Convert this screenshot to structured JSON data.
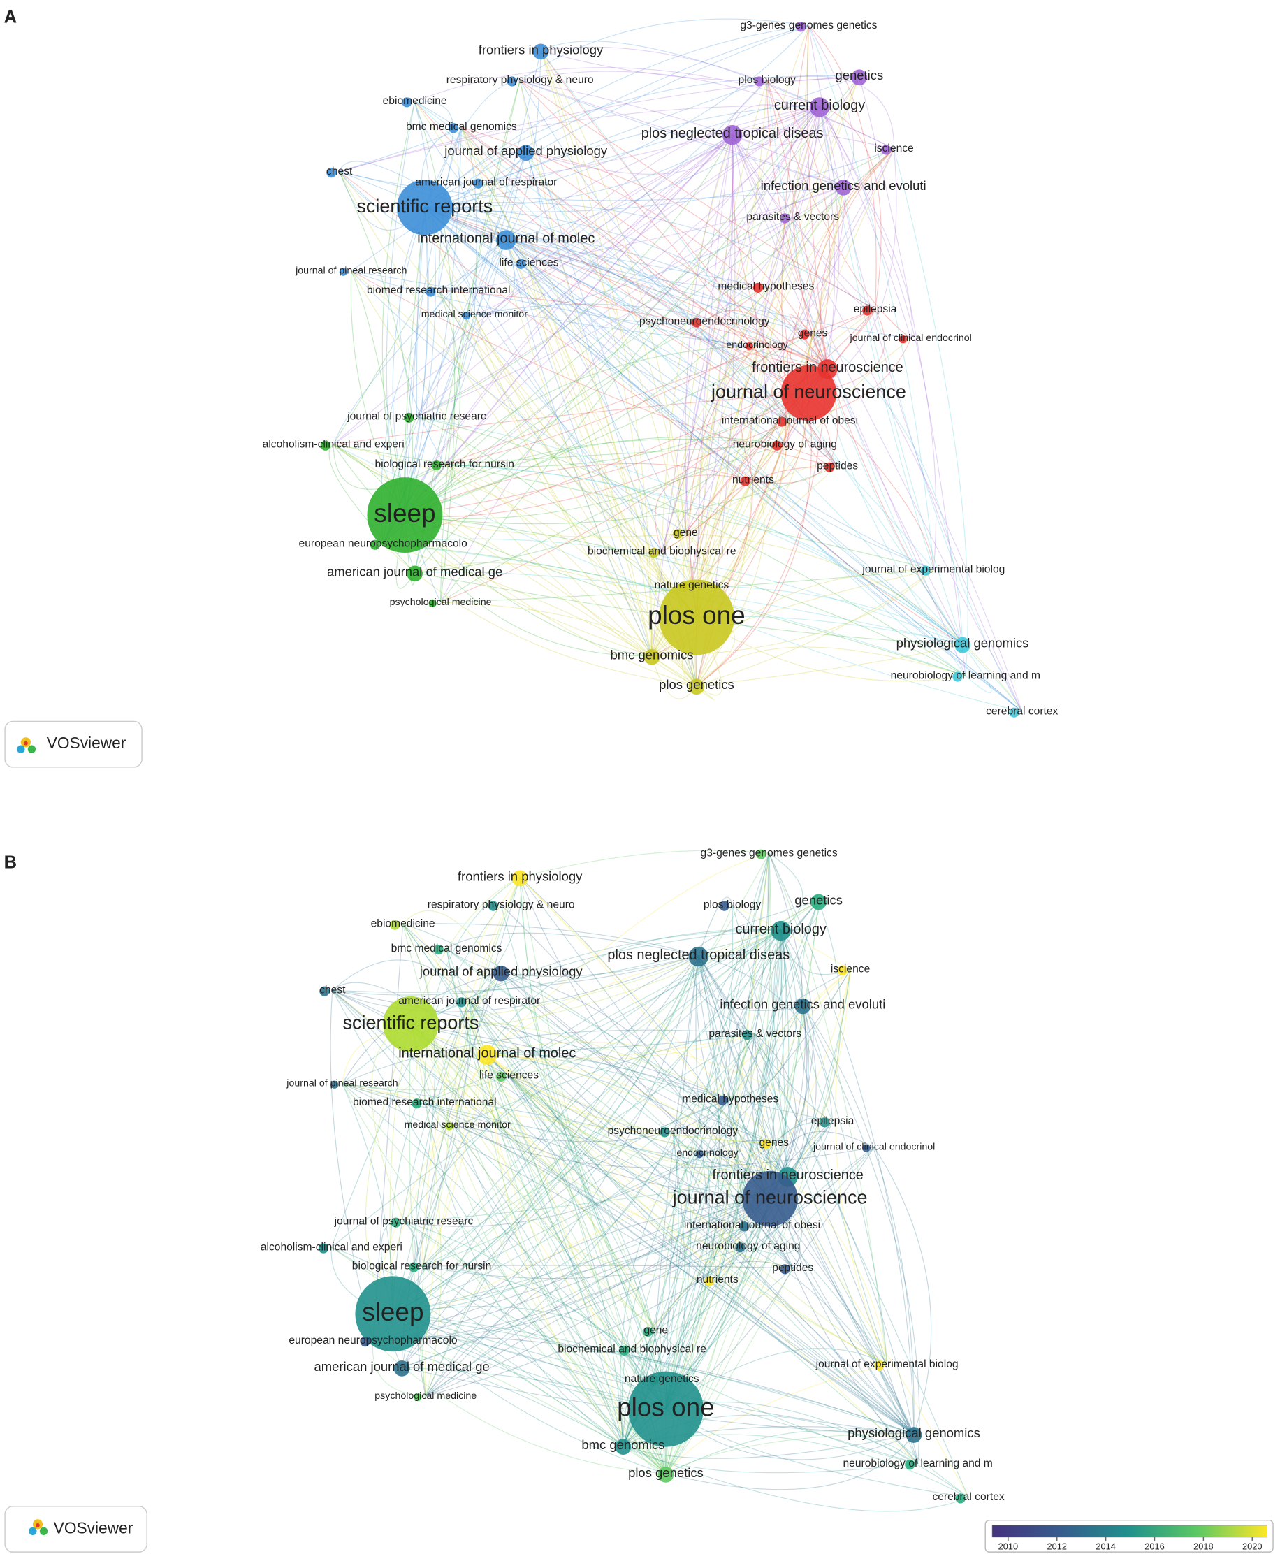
{
  "panels": [
    {
      "label": "A",
      "logo": "VOSviewer",
      "nodes": [
        "g3-genes genomes genetics",
        "frontiers in physiology",
        "respiratory physiology & neuro",
        "plos biology",
        "genetics",
        "ebiomedicine",
        "current biology",
        "bmc medical genomics",
        "plos neglected tropical diseas",
        "journal of applied physiology",
        "iscience",
        "chest",
        "american journal of respirator",
        "infection genetics and evoluti",
        "scientific reports",
        "parasites & vectors",
        "international journal of molec",
        "life sciences",
        "journal of pineal research",
        "biomed research international",
        "medical hypotheses",
        "epilepsia",
        "medical science monitor",
        "psychoneuroendocrinology",
        "genes",
        "journal of clinical endocrinol",
        "endocrinology",
        "frontiers in neuroscience",
        "journal of neuroscience",
        "journal of psychiatric researc",
        "international journal of obesi",
        "alcoholism-clinical and experi",
        "neurobiology of aging",
        "biological research for nursin",
        "peptides",
        "nutrients",
        "sleep",
        "gene",
        "european neuropsychopharmacolo",
        "biochemical and biophysical re",
        "journal of experimental biolog",
        "american journal of medical ge",
        "nature genetics",
        "psychological medicine",
        "plos one",
        "physiological genomics",
        "bmc genomics",
        "neurobiology of learning and m",
        "plos genetics",
        "cerebral cortex"
      ]
    },
    {
      "label": "B",
      "logo": "VOSviewer",
      "nodes": [
        "g3-genes genomes genetics",
        "frontiers in physiology",
        "respiratory physiology & neuro",
        "plos biology",
        "genetics",
        "ebiomedicine",
        "current biology",
        "bmc medical genomics",
        "plos neglected tropical diseas",
        "journal of applied physiology",
        "iscience",
        "chest",
        "american journal of respirator",
        "infection genetics and evoluti",
        "scientific reports",
        "parasites & vectors",
        "international journal of molec",
        "life sciences",
        "journal of pineal research",
        "biomed research international",
        "medical hypotheses",
        "epilepsia",
        "medical science monitor",
        "psychoneuroendocrinology",
        "genes",
        "journal of clinical endocrinol",
        "endocrinology",
        "frontiers in neuroscience",
        "journal of neuroscience",
        "journal of psychiatric researc",
        "international journal of obesi",
        "alcoholism-clinical and experi",
        "neurobiology of aging",
        "biological research for nursin",
        "peptides",
        "nutrients",
        "sleep",
        "gene",
        "european neuropsychopharmacolo",
        "biochemical and biophysical re",
        "journal of experimental biolog",
        "american journal of medical ge",
        "nature genetics",
        "psychological medicine",
        "plos one",
        "physiological genomics",
        "bmc genomics",
        "neurobiology of learning and m",
        "plos genetics",
        "cerebral cortex"
      ],
      "colorbar": {
        "ticks": [
          2010,
          2012,
          2014,
          2016,
          2018,
          2020
        ]
      }
    }
  ]
}
